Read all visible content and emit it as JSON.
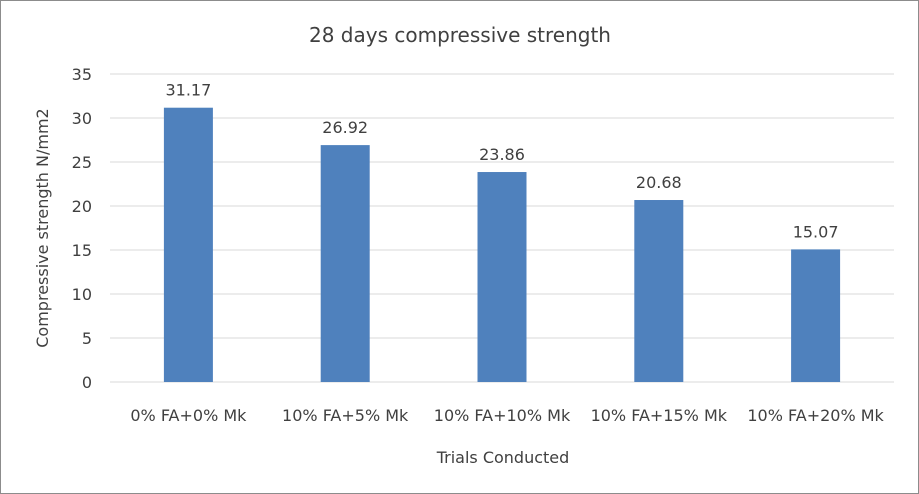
{
  "chart_data": {
    "type": "bar",
    "title": "28 days compressive strength",
    "xlabel": "Trials Conducted",
    "ylabel": "Compressive strength N/mm2",
    "categories": [
      "0% FA+0% Mk",
      "10% FA+5% Mk",
      "10% FA+10% Mk",
      "10% FA+15% Mk",
      "10% FA+20% Mk"
    ],
    "values": [
      31.17,
      26.92,
      23.86,
      20.68,
      15.07
    ],
    "value_labels": [
      "31.17",
      "26.92",
      "23.86",
      "20.68",
      "15.07"
    ],
    "ylim": [
      0,
      35
    ],
    "yticks": [
      0,
      5,
      10,
      15,
      20,
      25,
      30,
      35
    ],
    "grid": true,
    "legend": "none",
    "bar_color": "#4f81bd",
    "grid_color": "#d9d9d9",
    "text_color": "#404040"
  }
}
